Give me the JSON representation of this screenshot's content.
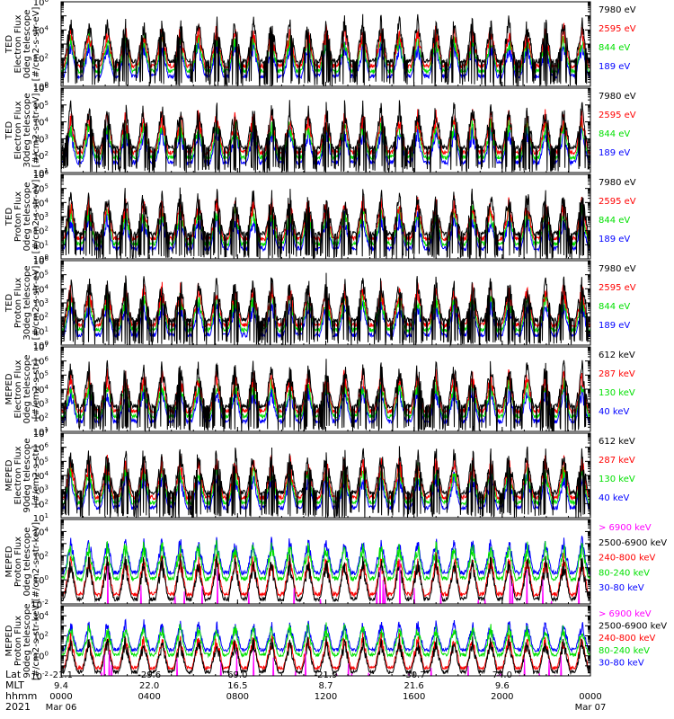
{
  "colors": {
    "black": "#000000",
    "blue": "#0000ff",
    "red": "#ff0000",
    "green": "#00e000",
    "magenta": "#ff00ff"
  },
  "chart_data": [
    {
      "type": "line",
      "ylabel": [
        "TED",
        "Electron Flux",
        "0deg telescope",
        "[#/cm2-s-str-eV]"
      ],
      "yscale": "log",
      "ylim_exp": [
        0,
        6
      ],
      "tick_labels": [
        "10^0",
        "10^2",
        "10^4",
        "10^6"
      ],
      "series": [
        {
          "name": "7980 eV",
          "color": "black"
        },
        {
          "name": "2595 eV",
          "color": "red"
        },
        {
          "name": "844 eV",
          "color": "green"
        },
        {
          "name": "189 eV",
          "color": "blue"
        }
      ]
    },
    {
      "type": "line",
      "ylabel": [
        "TED",
        "Electron Flux",
        "30deg telescope",
        "[#/cm2-s-str-eV]"
      ],
      "yscale": "log",
      "ylim_exp": [
        1,
        6
      ],
      "tick_labels": [
        "10^1",
        "10^2",
        "10^3",
        "10^4",
        "10^5",
        "10^6"
      ],
      "series": [
        {
          "name": "7980 eV",
          "color": "black"
        },
        {
          "name": "2595 eV",
          "color": "red"
        },
        {
          "name": "844 eV",
          "color": "green"
        },
        {
          "name": "189 eV",
          "color": "blue"
        }
      ]
    },
    {
      "type": "line",
      "ylabel": [
        "TED",
        "Proton Flux",
        "0deg telescope",
        "[#/cm2-s-str-eV]"
      ],
      "yscale": "log",
      "ylim_exp": [
        0,
        6
      ],
      "tick_labels": [
        "10^0",
        "10^1",
        "10^2",
        "10^3",
        "10^4",
        "10^5",
        "10^6"
      ],
      "series": [
        {
          "name": "7980 eV",
          "color": "black"
        },
        {
          "name": "2595 eV",
          "color": "red"
        },
        {
          "name": "844 eV",
          "color": "green"
        },
        {
          "name": "189 eV",
          "color": "blue"
        }
      ]
    },
    {
      "type": "line",
      "ylabel": [
        "TED",
        "Proton Flux",
        "30deg telescope",
        "[#/cm2-s-str-eV]"
      ],
      "yscale": "log",
      "ylim_exp": [
        0,
        6
      ],
      "tick_labels": [
        "10^0",
        "10^1",
        "10^2",
        "10^3",
        "10^4",
        "10^5",
        "10^6"
      ],
      "series": [
        {
          "name": "7980 eV",
          "color": "black"
        },
        {
          "name": "2595 eV",
          "color": "red"
        },
        {
          "name": "844 eV",
          "color": "green"
        },
        {
          "name": "189 eV",
          "color": "blue"
        }
      ]
    },
    {
      "type": "line",
      "ylabel": [
        "MEPED",
        "Electron Flux",
        "0deg telescope",
        "[#/cm2-s-str]"
      ],
      "yscale": "log",
      "ylim_exp": [
        1,
        7
      ],
      "tick_labels": [
        "10^1",
        "10^2",
        "10^3",
        "10^4",
        "10^5",
        "10^6",
        "10^7"
      ],
      "series": [
        {
          "name": "612 keV",
          "color": "black"
        },
        {
          "name": "287 keV",
          "color": "red"
        },
        {
          "name": "130 keV",
          "color": "green"
        },
        {
          "name": "40 keV",
          "color": "blue"
        }
      ]
    },
    {
      "type": "line",
      "ylabel": [
        "MEPED",
        "Electron Flux",
        "90deg telescope",
        "[#/cm2-s-str]"
      ],
      "yscale": "log",
      "ylim_exp": [
        1,
        7
      ],
      "tick_labels": [
        "10^1",
        "10^2",
        "10^3",
        "10^4",
        "10^5",
        "10^6",
        "10^7"
      ],
      "series": [
        {
          "name": "612 keV",
          "color": "black"
        },
        {
          "name": "287 keV",
          "color": "red"
        },
        {
          "name": "130 keV",
          "color": "green"
        },
        {
          "name": "40 keV",
          "color": "blue"
        }
      ]
    },
    {
      "type": "line",
      "ylabel": [
        "MEPED",
        "Proton Flux",
        "0deg telescope",
        "[#/cm2-s-str-keV]"
      ],
      "yscale": "log",
      "ylim_exp": [
        -2,
        5
      ],
      "tick_labels": [
        "10^-2",
        "10^0",
        "10^2",
        "10^4"
      ],
      "series": [
        {
          "name": "> 6900 keV",
          "color": "magenta"
        },
        {
          "name": "2500-6900 keV",
          "color": "black"
        },
        {
          "name": "240-800 keV",
          "color": "red"
        },
        {
          "name": "80-240 keV",
          "color": "green"
        },
        {
          "name": "30-80 keV",
          "color": "blue"
        }
      ]
    },
    {
      "type": "line",
      "ylabel": [
        "MEPED",
        "Proton Flux",
        "90deg telescope",
        "[#/cm2-s-str-keV]"
      ],
      "yscale": "log",
      "ylim_exp": [
        -2,
        5
      ],
      "tick_labels": [
        "10^-2",
        "10^0",
        "10^2",
        "10^4"
      ],
      "series": [
        {
          "name": "> 6900 keV",
          "color": "magenta"
        },
        {
          "name": "2500-6900 keV",
          "color": "black"
        },
        {
          "name": "240-800 keV",
          "color": "red"
        },
        {
          "name": "80-240 keV",
          "color": "green"
        },
        {
          "name": "30-80 keV",
          "color": "blue"
        }
      ]
    }
  ],
  "x_axis": {
    "row_labels": [
      "Lat",
      "MLT",
      "hhmm",
      "2021"
    ],
    "columns": [
      {
        "lat": "-21.1",
        "mlt": "9.4",
        "hhmm": "0000",
        "date": "Mar 06"
      },
      {
        "lat": "-29.6",
        "mlt": "22.0",
        "hhmm": "0400",
        "date": ""
      },
      {
        "lat": "69.0",
        "mlt": "16.5",
        "hhmm": "0800",
        "date": ""
      },
      {
        "lat": "-21.9",
        "mlt": "8.7",
        "hhmm": "1200",
        "date": ""
      },
      {
        "lat": "-30.7",
        "mlt": "21.6",
        "hhmm": "1600",
        "date": ""
      },
      {
        "lat": "74.0",
        "mlt": "9.6",
        "hhmm": "2000",
        "date": ""
      },
      {
        "lat": "",
        "mlt": "",
        "hhmm": "0000",
        "date": "Mar 07"
      }
    ]
  }
}
